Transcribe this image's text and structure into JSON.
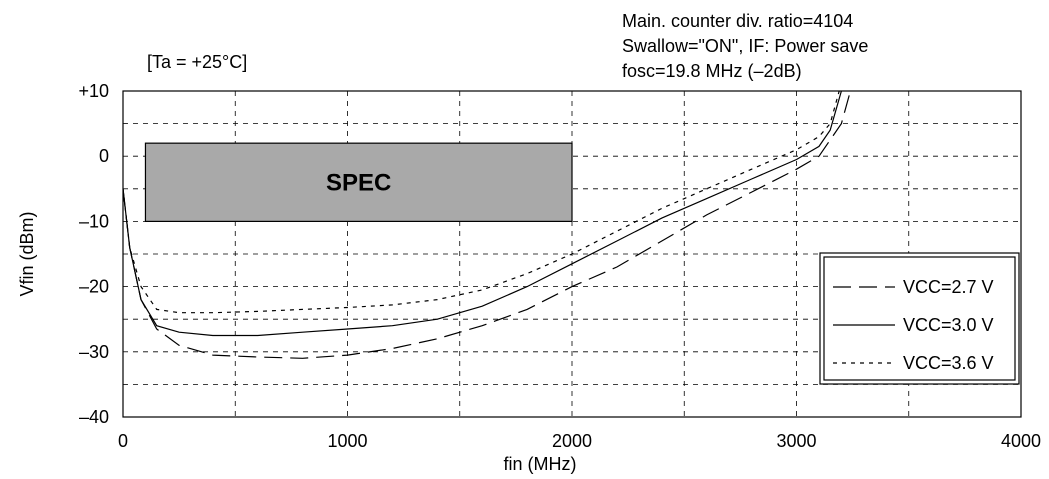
{
  "chart_data": {
    "type": "line",
    "condition": "[Ta = +25°C]",
    "notes": [
      "Main. counter div. ratio=4104",
      "Swallow=\"ON\", IF: Power save",
      "fosc=19.8 MHz (–2dB)"
    ],
    "xlabel": "fin (MHz)",
    "ylabel": "Vfin (dBm)",
    "xlim": [
      0,
      4000
    ],
    "ylim": [
      -40,
      10
    ],
    "x_ticks": [
      {
        "value": 0,
        "label": "0"
      },
      {
        "value": 1000,
        "label": "1000"
      },
      {
        "value": 2000,
        "label": "2000"
      },
      {
        "value": 3000,
        "label": "3000"
      },
      {
        "value": 4000,
        "label": "4000"
      }
    ],
    "y_ticks": [
      {
        "value": 10,
        "label": "+10"
      },
      {
        "value": 0,
        "label": "0"
      },
      {
        "value": -10,
        "label": "–10"
      },
      {
        "value": -20,
        "label": "–20"
      },
      {
        "value": -30,
        "label": "–30"
      },
      {
        "value": -40,
        "label": "–40"
      }
    ],
    "grid": true,
    "spec_region": {
      "label": "SPEC",
      "x": [
        100,
        2000
      ],
      "y": [
        -10,
        2
      ],
      "color": "#a9a9a9"
    },
    "legend_position": "right",
    "series": [
      {
        "name": "VCC=2.7 V",
        "style": "long-dash",
        "points": [
          [
            0,
            -5
          ],
          [
            30,
            -14
          ],
          [
            80,
            -22
          ],
          [
            150,
            -26.5
          ],
          [
            250,
            -29
          ],
          [
            400,
            -30.5
          ],
          [
            600,
            -30.8
          ],
          [
            800,
            -31
          ],
          [
            1000,
            -30.5
          ],
          [
            1200,
            -29.5
          ],
          [
            1400,
            -28
          ],
          [
            1600,
            -26
          ],
          [
            1800,
            -23.5
          ],
          [
            2000,
            -20
          ],
          [
            2200,
            -17
          ],
          [
            2400,
            -13
          ],
          [
            2600,
            -9
          ],
          [
            2800,
            -5.5
          ],
          [
            3000,
            -2
          ],
          [
            3100,
            0
          ],
          [
            3200,
            5
          ],
          [
            3240,
            10
          ]
        ]
      },
      {
        "name": "VCC=3.0 V",
        "style": "solid",
        "points": [
          [
            0,
            -5
          ],
          [
            30,
            -14
          ],
          [
            80,
            -22
          ],
          [
            150,
            -26
          ],
          [
            250,
            -27
          ],
          [
            400,
            -27.5
          ],
          [
            600,
            -27.5
          ],
          [
            800,
            -27
          ],
          [
            1000,
            -26.5
          ],
          [
            1200,
            -26
          ],
          [
            1400,
            -25
          ],
          [
            1600,
            -23
          ],
          [
            1800,
            -20
          ],
          [
            2000,
            -16.5
          ],
          [
            2200,
            -13
          ],
          [
            2400,
            -9.5
          ],
          [
            2600,
            -6.5
          ],
          [
            2800,
            -3.5
          ],
          [
            3000,
            -0.5
          ],
          [
            3100,
            1.5
          ],
          [
            3150,
            4
          ],
          [
            3200,
            10
          ]
        ]
      },
      {
        "name": "VCC=3.6 V",
        "style": "short-dash",
        "points": [
          [
            0,
            -5
          ],
          [
            30,
            -14
          ],
          [
            80,
            -20
          ],
          [
            150,
            -23.5
          ],
          [
            250,
            -24
          ],
          [
            400,
            -24
          ],
          [
            600,
            -23.8
          ],
          [
            800,
            -23.5
          ],
          [
            1000,
            -23.2
          ],
          [
            1200,
            -22.8
          ],
          [
            1400,
            -22
          ],
          [
            1600,
            -20.5
          ],
          [
            1800,
            -18
          ],
          [
            2000,
            -15
          ],
          [
            2200,
            -11.5
          ],
          [
            2400,
            -8
          ],
          [
            2600,
            -5
          ],
          [
            2800,
            -2
          ],
          [
            3000,
            1
          ],
          [
            3100,
            3
          ],
          [
            3150,
            5
          ],
          [
            3190,
            10
          ]
        ]
      }
    ]
  }
}
